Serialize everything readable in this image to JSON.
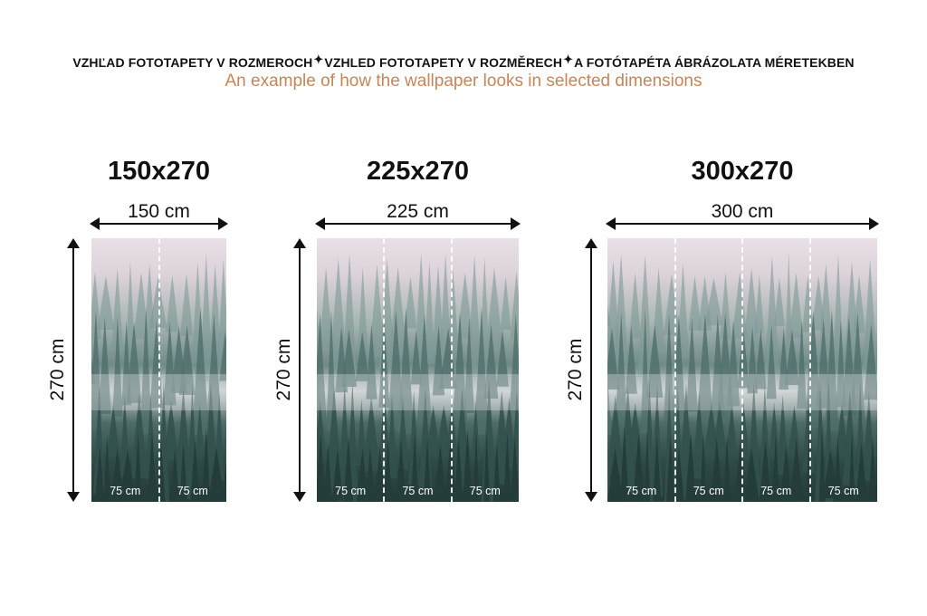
{
  "header": {
    "titles": [
      "VZHĽAD FOTOTAPETY V ROZMEROCH",
      "VZHLED FOTOTAPETY V ROZMĚRECH",
      "A FOTÓTAPÉTA ÁBRÁZOLATA MÉRETEKBEN"
    ],
    "separator_icon": "sparkle-icon",
    "subtitle": "An example of how the wallpaper looks in selected dimensions",
    "subtitle_color": "#c4855a"
  },
  "panels": [
    {
      "title": "150x270",
      "width_label": "150 cm",
      "height_label": "270 cm",
      "panel_labels": [
        "75 cm",
        "75 cm"
      ]
    },
    {
      "title": "225x270",
      "width_label": "225 cm",
      "height_label": "270 cm",
      "panel_labels": [
        "75 cm",
        "75 cm",
        "75 cm"
      ]
    },
    {
      "title": "300x270",
      "width_label": "300 cm",
      "height_label": "270 cm",
      "panel_labels": [
        "75 cm",
        "75 cm",
        "75 cm",
        "75 cm"
      ]
    }
  ]
}
